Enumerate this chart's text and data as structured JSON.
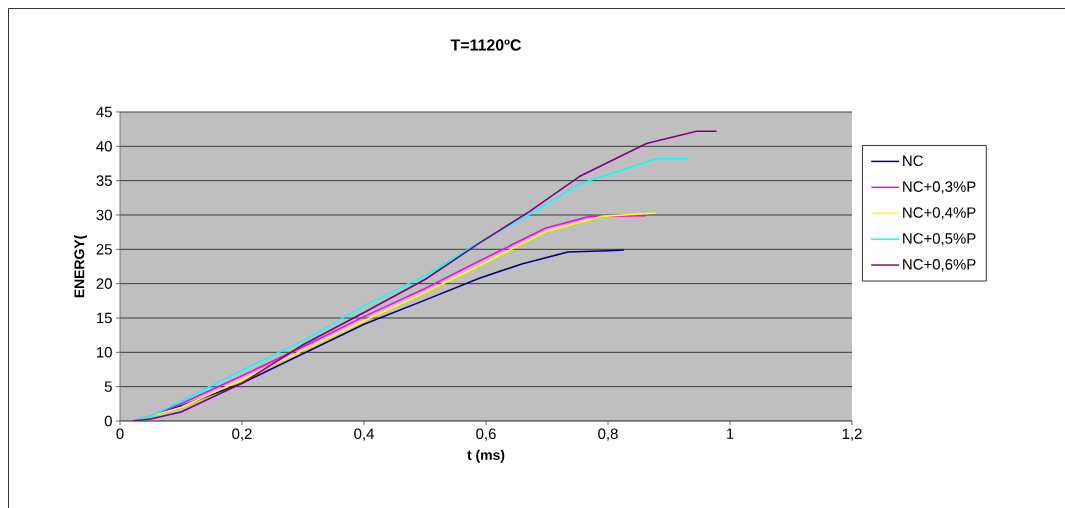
{
  "chart_data": {
    "type": "line",
    "title": "T=1120ºC",
    "xlabel": "t (ms)",
    "ylabel": "ENERGY(",
    "xlim": [
      0,
      1.2
    ],
    "xticks": [
      0,
      {
        "value": 0.2,
        "label": "0,2"
      },
      {
        "value": 0.4,
        "label": "0,4"
      },
      {
        "value": 0.6,
        "label": "0,6"
      },
      {
        "value": 0.8,
        "label": "0,8"
      },
      1,
      {
        "value": 1.2,
        "label": "1,2"
      }
    ],
    "ylim": [
      0,
      45
    ],
    "yticks": [
      0,
      5,
      10,
      15,
      20,
      25,
      30,
      35,
      40,
      45
    ],
    "grid": "y",
    "legend": "right",
    "marker": "none",
    "line_style": "solid",
    "series": [
      {
        "name": "NC",
        "color": "#000080",
        "x": [
          0.02,
          0.05,
          0.1,
          0.2,
          0.3,
          0.4,
          0.5,
          0.589,
          0.66,
          0.734,
          0.8,
          0.826
        ],
        "values": [
          0,
          0.7,
          2.2,
          5.5,
          9.8,
          14.1,
          17.6,
          20.8,
          22.9,
          24.6,
          24.8,
          24.9
        ]
      },
      {
        "name": "NC+0,3%P",
        "color": "#ff00ff",
        "x": [
          0.02,
          0.05,
          0.1,
          0.2,
          0.3,
          0.4,
          0.5,
          0.589,
          0.698,
          0.77,
          0.862
        ],
        "values": [
          0,
          0.7,
          2.5,
          6.6,
          10.8,
          15.2,
          19.3,
          23.3,
          28.1,
          29.8,
          29.9
        ]
      },
      {
        "name": "NC+0,4%P",
        "color": "#ffff00",
        "x": [
          0.02,
          0.05,
          0.1,
          0.2,
          0.3,
          0.4,
          0.5,
          0.589,
          0.698,
          0.79,
          0.878
        ],
        "values": [
          0,
          0.7,
          2.0,
          6.0,
          10.3,
          14.6,
          18.7,
          22.6,
          27.6,
          29.8,
          30.3
        ]
      },
      {
        "name": "NC+0,5%P",
        "color": "#00ffff",
        "x": [
          0.02,
          0.05,
          0.1,
          0.2,
          0.3,
          0.4,
          0.5,
          0.589,
          0.671,
          0.753,
          0.879,
          0.931
        ],
        "values": [
          0,
          0.7,
          2.9,
          7.4,
          11.7,
          16.8,
          21.2,
          26.0,
          30.1,
          34.5,
          38.2,
          38.2
        ]
      },
      {
        "name": "NC+0,6%P",
        "color": "#800080",
        "x": [
          0.02,
          0.05,
          0.1,
          0.2,
          0.3,
          0.4,
          0.5,
          0.589,
          0.671,
          0.753,
          0.863,
          0.945,
          0.978
        ],
        "values": [
          0,
          0.3,
          1.3,
          5.5,
          11.1,
          15.8,
          20.6,
          25.9,
          30.5,
          35.6,
          40.4,
          42.2,
          42.2
        ]
      }
    ]
  }
}
